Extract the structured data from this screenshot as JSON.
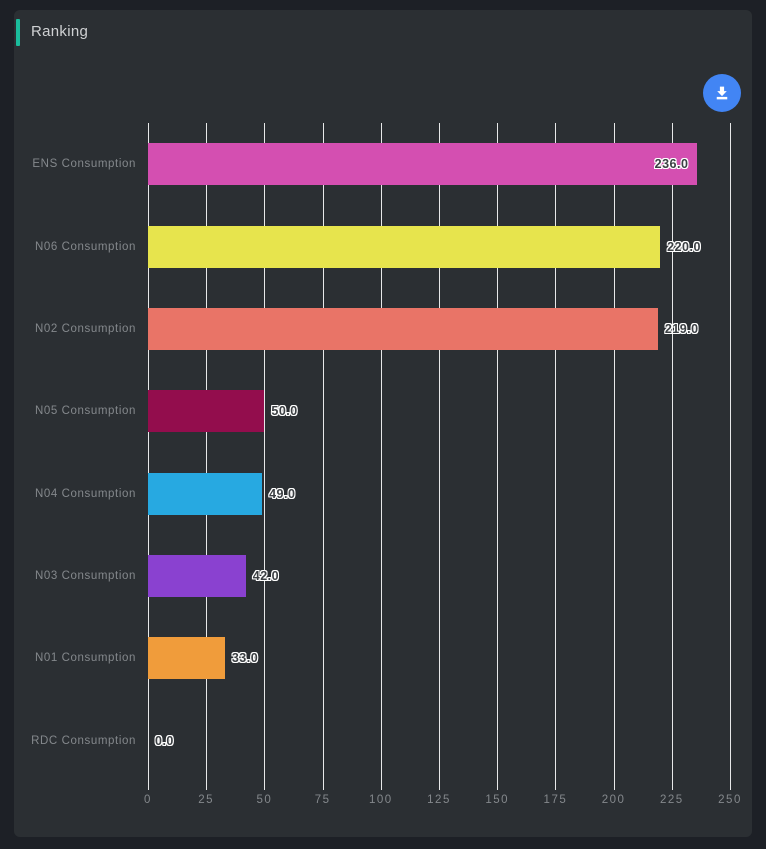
{
  "page": {
    "background": "#1d2026"
  },
  "card": {
    "background": "#2b2f33",
    "title": "Ranking",
    "accent_color": "#1abc9c",
    "toolbar": {
      "download_button_color": "#4285f4",
      "download_icon": "download-icon"
    }
  },
  "chart_data": {
    "type": "bar",
    "orientation": "horizontal",
    "title": "Ranking",
    "categories": [
      "ENS Consumption",
      "N06 Consumption",
      "N02 Consumption",
      "N05 Consumption",
      "N04 Consumption",
      "N03 Consumption",
      "N01 Consumption",
      "RDC Consumption"
    ],
    "values": [
      236.0,
      220.0,
      219.0,
      50.0,
      49.0,
      42.0,
      33.0,
      0.0
    ],
    "value_labels": [
      "236.0",
      "220.0",
      "219.0",
      "50.0",
      "49.0",
      "42.0",
      "33.0",
      "0.0"
    ],
    "bar_colors": [
      "#d44fb1",
      "#e7e44d",
      "#e97467",
      "#930d4d",
      "#27a9e1",
      "#8a41d0",
      "#f09c3b",
      "transparent"
    ],
    "x_ticks": [
      "0",
      "25",
      "50",
      "75",
      "100",
      "125",
      "150",
      "175",
      "200",
      "225",
      "250"
    ],
    "xlim": [
      0,
      250
    ],
    "grid": true,
    "gridline_color": "#e7e8e9",
    "axis_label_color": "#84888c",
    "category_label_color": "#84888c",
    "value_label_outline": "#ffffff"
  }
}
